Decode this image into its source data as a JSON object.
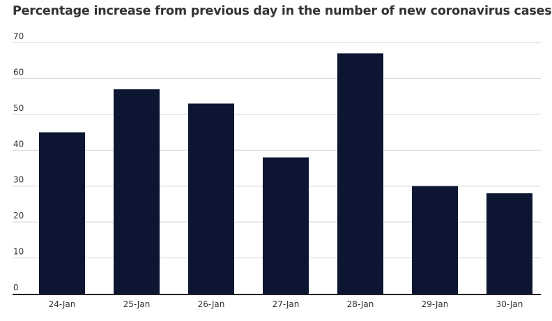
{
  "chart_data": {
    "type": "bar",
    "title": "Percentage increase from previous day in the number of new coronavirus cases",
    "categories": [
      "24-Jan",
      "25-Jan",
      "26-Jan",
      "27-Jan",
      "28-Jan",
      "29-Jan",
      "30-Jan"
    ],
    "series": [
      {
        "values": [
          45,
          57,
          53,
          38,
          67,
          30,
          28
        ]
      }
    ],
    "ylim": [
      0,
      70
    ],
    "yticks": [
      0,
      10,
      20,
      30,
      40,
      50,
      60,
      70
    ],
    "grid": true,
    "legend": "none",
    "bar_color": "#0c1633"
  }
}
